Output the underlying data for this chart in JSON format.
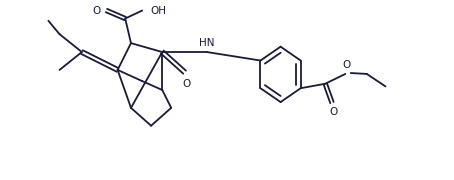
{
  "figure_width": 4.54,
  "figure_height": 1.8,
  "dpi": 100,
  "line_color": "#1a1a3a",
  "line_width": 1.3,
  "font_size": 7.5,
  "background": "#ffffff",
  "xlim": [
    0,
    10
  ],
  "ylim": [
    0,
    4
  ]
}
